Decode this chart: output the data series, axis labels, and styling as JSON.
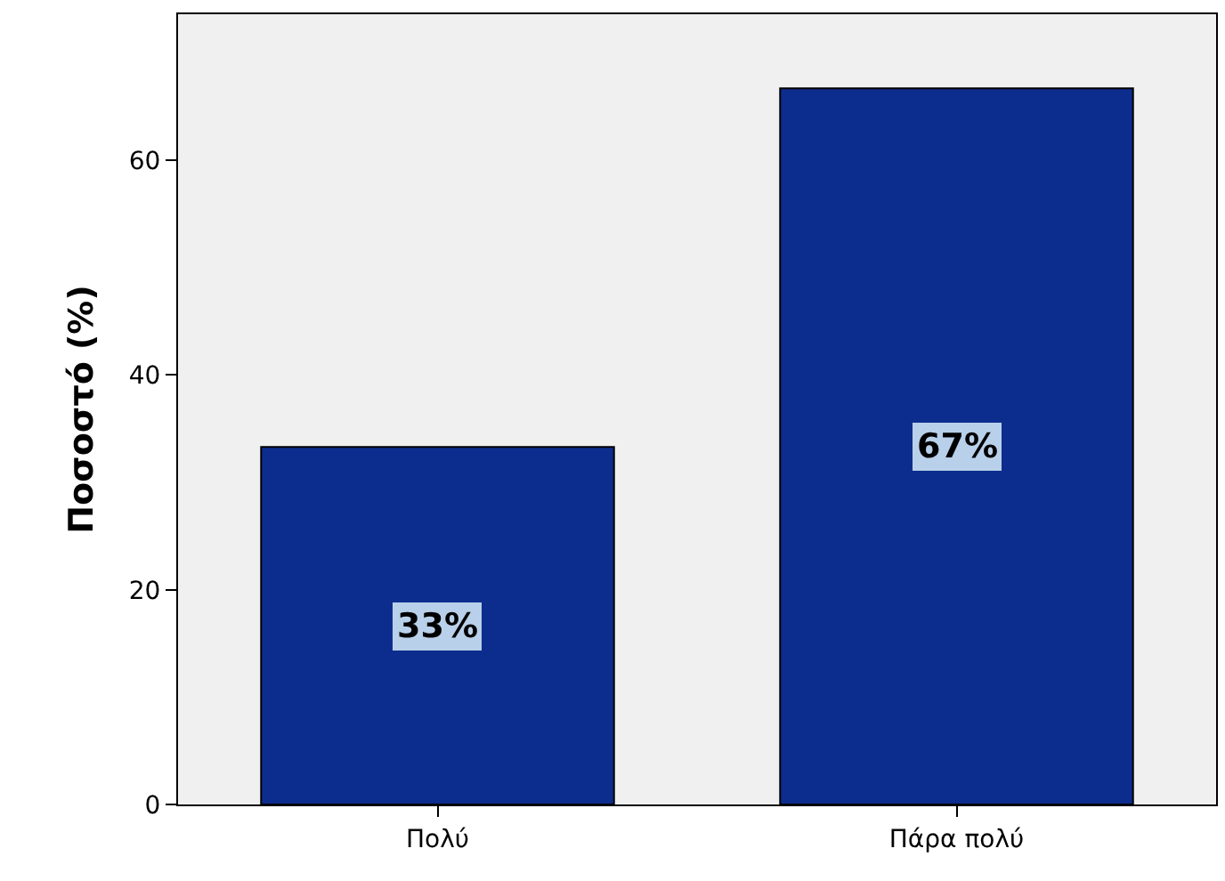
{
  "chart_data": {
    "type": "bar",
    "ylabel": "Ποσοστό (%)",
    "categories": [
      "Πολύ",
      "Πάρα πολύ"
    ],
    "values": [
      33.3,
      66.7
    ],
    "value_labels": [
      "33%",
      "67%"
    ],
    "color": "#0d2d8e",
    "ylim": [
      0,
      73.6
    ],
    "yticks": [
      0,
      20,
      40,
      60
    ],
    "grid": false,
    "legend": false
  }
}
